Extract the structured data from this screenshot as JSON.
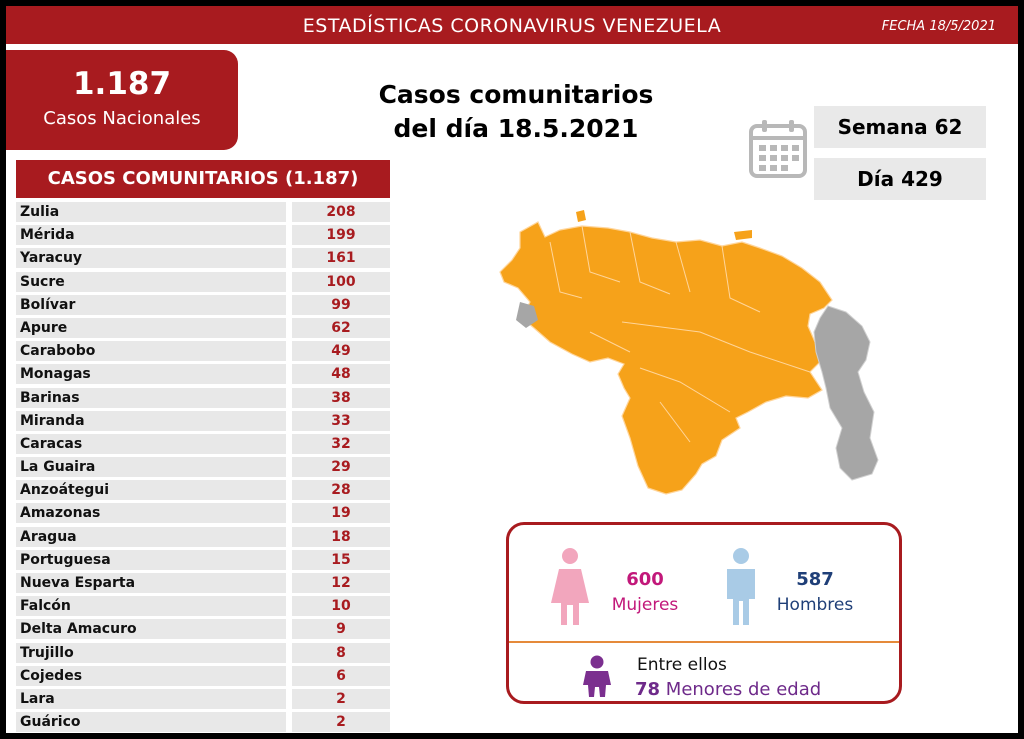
{
  "header": {
    "title": "ESTADÍSTICAS CORONAVIRUS VENEZUELA",
    "fecha": "FECHA 18/5/2021"
  },
  "nacional": {
    "count": "1.187",
    "label": "Casos Nacionales"
  },
  "center_title": {
    "line1": "Casos comunitarios",
    "line2": "del día 18.5.2021"
  },
  "semana": "Semana 62",
  "dia": "Día 429",
  "table": {
    "header": "CASOS COMUNITARIOS (1.187)",
    "rows": [
      {
        "state": "Zulia",
        "cases": "208"
      },
      {
        "state": "Mérida",
        "cases": "199"
      },
      {
        "state": "Yaracuy",
        "cases": "161"
      },
      {
        "state": "Sucre",
        "cases": "100"
      },
      {
        "state": "Bolívar",
        "cases": "99"
      },
      {
        "state": "Apure",
        "cases": "62"
      },
      {
        "state": "Carabobo",
        "cases": "49"
      },
      {
        "state": "Monagas",
        "cases": "48"
      },
      {
        "state": "Barinas",
        "cases": "38"
      },
      {
        "state": "Miranda",
        "cases": "33"
      },
      {
        "state": "Caracas",
        "cases": "32"
      },
      {
        "state": "La Guaira",
        "cases": "29"
      },
      {
        "state": "Anzoátegui",
        "cases": "28"
      },
      {
        "state": "Amazonas",
        "cases": "19"
      },
      {
        "state": "Aragua",
        "cases": "18"
      },
      {
        "state": "Portuguesa",
        "cases": "15"
      },
      {
        "state": "Nueva Esparta",
        "cases": "12"
      },
      {
        "state": "Falcón",
        "cases": "10"
      },
      {
        "state": "Delta Amacuro",
        "cases": "9"
      },
      {
        "state": "Trujillo",
        "cases": "8"
      },
      {
        "state": "Cojedes",
        "cases": "6"
      },
      {
        "state": "Lara",
        "cases": "2"
      },
      {
        "state": "Guárico",
        "cases": "2"
      }
    ]
  },
  "gender": {
    "women_count": "600",
    "women_label": "Mujeres",
    "men_count": "587",
    "men_label": "Hombres",
    "among_label": "Entre ellos",
    "minors_count": "78",
    "minors_label": "Menores de edad"
  },
  "colors": {
    "brand_red": "#a81b1f",
    "map_orange": "#f6a21a",
    "map_gray": "#a6a6a6",
    "women_pink": "#f2a6bd",
    "men_blue": "#a9cbe6",
    "minor_purple": "#7b2f8f"
  },
  "icons": [
    "calendar-icon",
    "woman-icon",
    "man-icon",
    "child-icon"
  ]
}
